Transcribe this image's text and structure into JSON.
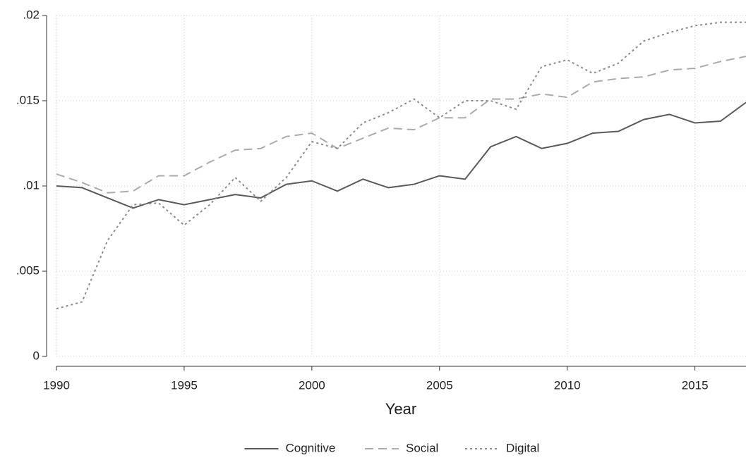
{
  "chart_data": {
    "type": "line",
    "x_label": "Year",
    "x": [
      1990,
      1991,
      1992,
      1993,
      1994,
      1995,
      1996,
      1997,
      1998,
      1999,
      2000,
      2001,
      2002,
      2003,
      2004,
      2005,
      2006,
      2007,
      2008,
      2009,
      2010,
      2011,
      2012,
      2013,
      2014,
      2015,
      2016,
      2017
    ],
    "series": [
      {
        "name": "Cognitive",
        "color": "#5a5a5a",
        "linestyle": "solid",
        "values": [
          0.01,
          0.0099,
          0.0093,
          0.0087,
          0.0092,
          0.0089,
          0.0092,
          0.0095,
          0.0093,
          0.0101,
          0.0103,
          0.0097,
          0.0104,
          0.0099,
          0.0101,
          0.0106,
          0.0104,
          0.0123,
          0.0129,
          0.0122,
          0.0125,
          0.0131,
          0.0132,
          0.0139,
          0.0142,
          0.0137,
          0.0138,
          0.0149
        ]
      },
      {
        "name": "Social",
        "color": "#ababab",
        "linestyle": "dashed",
        "values": [
          0.0107,
          0.0102,
          0.0096,
          0.0097,
          0.0106,
          0.0106,
          0.0114,
          0.0121,
          0.0122,
          0.0129,
          0.0131,
          0.0122,
          0.0128,
          0.0134,
          0.0133,
          0.014,
          0.014,
          0.0151,
          0.0151,
          0.0154,
          0.0152,
          0.0161,
          0.0163,
          0.0164,
          0.0168,
          0.0169,
          0.0173,
          0.0176
        ]
      },
      {
        "name": "Digital",
        "color": "#8a8a8a",
        "linestyle": "dotted",
        "values": [
          0.0028,
          0.0032,
          0.0068,
          0.0089,
          0.009,
          0.0077,
          0.0089,
          0.0105,
          0.0091,
          0.0105,
          0.0126,
          0.0122,
          0.0137,
          0.0143,
          0.0151,
          0.014,
          0.015,
          0.015,
          0.0145,
          0.017,
          0.0174,
          0.0166,
          0.0172,
          0.0185,
          0.019,
          0.0194,
          0.0196,
          0.0196
        ]
      }
    ],
    "xlim": [
      1990,
      2017
    ],
    "xticks": [
      1990,
      1995,
      2000,
      2005,
      2010,
      2015
    ],
    "ylim": [
      0,
      0.02
    ],
    "yticks": [
      0,
      {
        "value": 0.005,
        "label": ".005"
      },
      {
        "value": 0.01,
        "label": ".01"
      },
      {
        "value": 0.015,
        "label": ".015"
      },
      {
        "value": 0.02,
        "label": ".02"
      }
    ],
    "grid": true,
    "legend": "bottom"
  }
}
